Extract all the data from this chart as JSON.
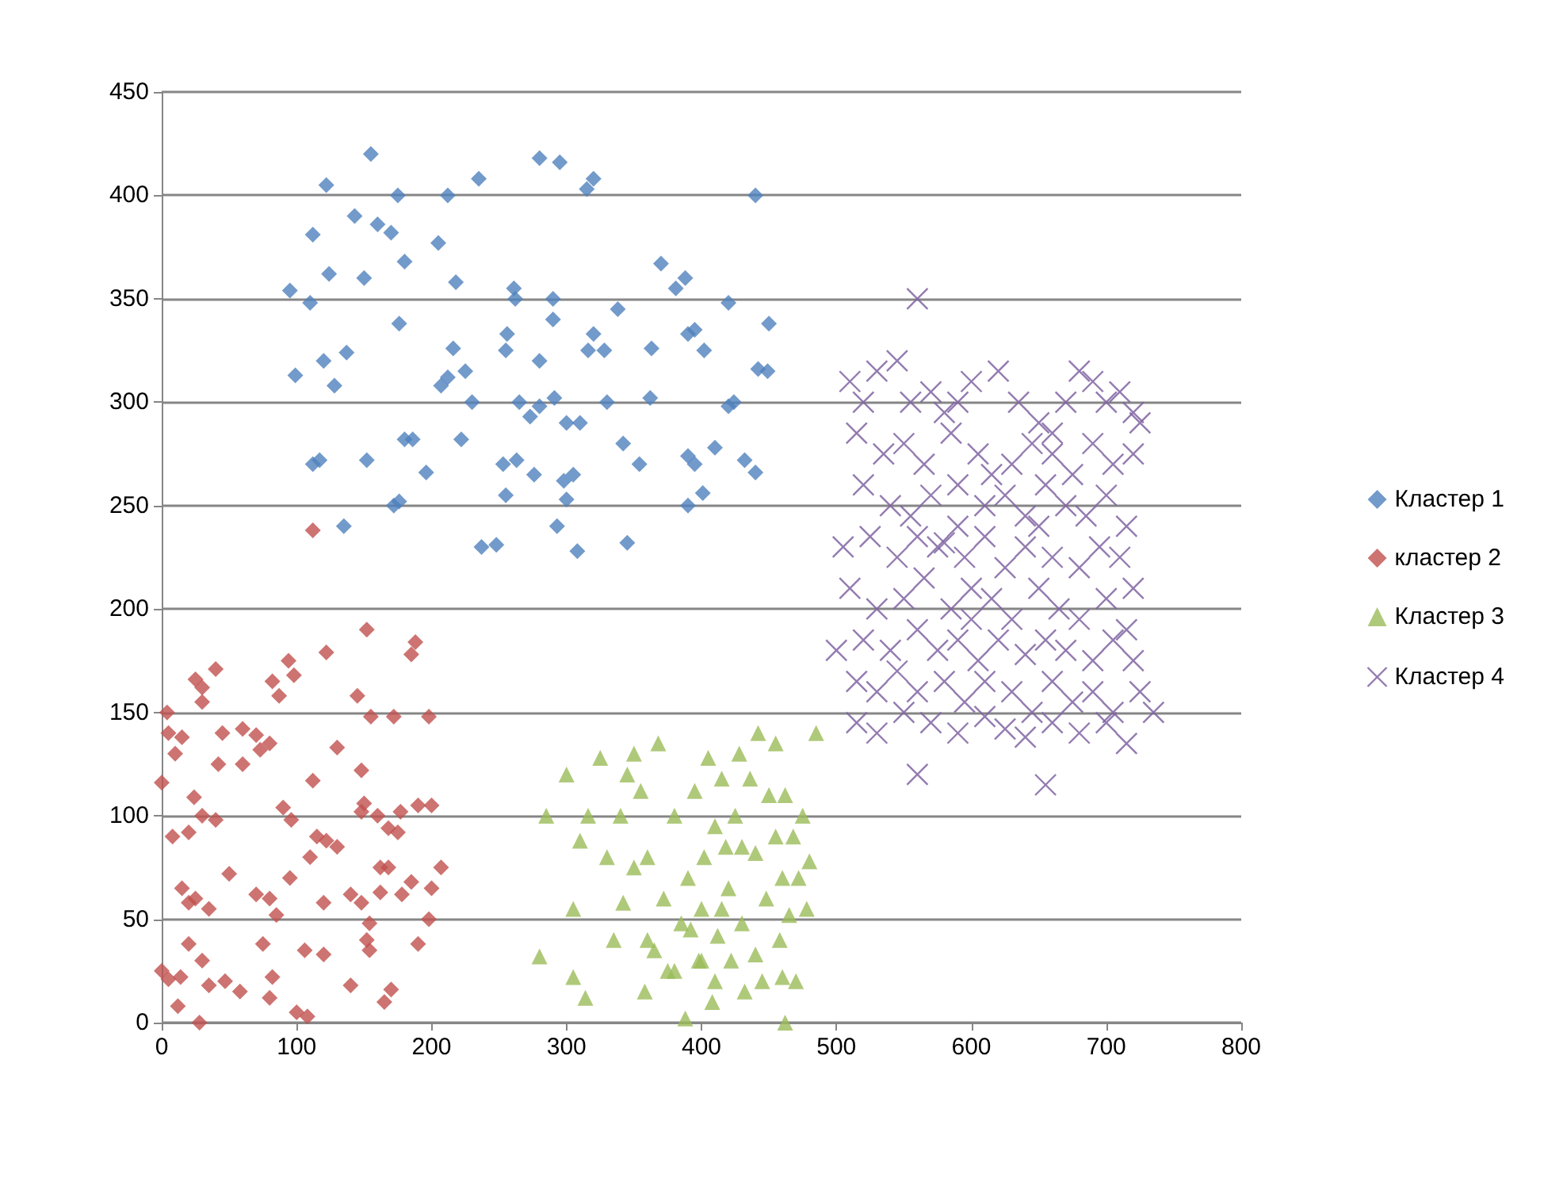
{
  "chart_data": {
    "type": "scatter",
    "xlim": [
      0,
      800
    ],
    "xticks": [
      0,
      100,
      200,
      300,
      400,
      500,
      600,
      700,
      800
    ],
    "ylim": [
      0,
      450
    ],
    "yticks": [
      0,
      50,
      100,
      150,
      200,
      250,
      300,
      350,
      400,
      450
    ],
    "grid": "y",
    "legend": "right",
    "series": [
      {
        "name": "Кластер 1",
        "color": "#4f81bd",
        "marker": "diamond",
        "x": [
          155,
          280,
          295,
          122,
          235,
          320,
          315,
          440,
          175,
          212,
          143,
          160,
          170,
          112,
          205,
          124,
          150,
          180,
          218,
          370,
          95,
          110,
          261,
          262,
          290,
          381,
          388,
          420,
          338,
          450,
          176,
          216,
          256,
          320,
          137,
          225,
          290,
          255,
          316,
          328,
          390,
          395,
          402,
          442,
          128,
          99,
          120,
          280,
          363,
          207,
          212,
          230,
          330,
          265,
          280,
          291,
          300,
          273,
          310,
          342,
          420,
          424,
          449,
          362,
          390,
          395,
          180,
          186,
          222,
          276,
          196,
          253,
          263,
          354,
          298,
          305,
          300,
          410,
          432,
          440,
          117,
          112,
          152,
          135,
          172,
          176,
          255,
          293,
          345,
          237,
          248,
          308,
          390,
          401
        ],
        "values": [
          420,
          418,
          416,
          405,
          408,
          408,
          403,
          400,
          400,
          400,
          390,
          386,
          382,
          381,
          377,
          362,
          360,
          368,
          358,
          367,
          354,
          348,
          355,
          350,
          350,
          355,
          360,
          348,
          345,
          338,
          338,
          326,
          333,
          333,
          324,
          315,
          340,
          325,
          325,
          325,
          333,
          335,
          325,
          316,
          308,
          313,
          320,
          320,
          326,
          308,
          312,
          300,
          300,
          300,
          298,
          302,
          290,
          293,
          290,
          280,
          298,
          300,
          315,
          302,
          274,
          270,
          282,
          282,
          282,
          265,
          266,
          270,
          272,
          270,
          262,
          265,
          253,
          278,
          272,
          266,
          272,
          270,
          272,
          240,
          250,
          252,
          255,
          240,
          232,
          230,
          231,
          228,
          250,
          256
        ]
      },
      {
        "name": "кластер 2",
        "color": "#c0504d",
        "marker": "diamond",
        "x": [
          112,
          152,
          188,
          185,
          122,
          40,
          25,
          30,
          82,
          94,
          98,
          87,
          145,
          155,
          30,
          172,
          198,
          4,
          5,
          15,
          10,
          60,
          45,
          70,
          80,
          73,
          148,
          130,
          60,
          42,
          112,
          0,
          24,
          150,
          90,
          96,
          148,
          160,
          168,
          175,
          177,
          200,
          190,
          115,
          122,
          130,
          110,
          8,
          20,
          30,
          40,
          15,
          20,
          25,
          35,
          50,
          70,
          80,
          85,
          120,
          140,
          148,
          95,
          154,
          152,
          162,
          162,
          168,
          178,
          185,
          198,
          190,
          200,
          207,
          20,
          14,
          30,
          35,
          47,
          58,
          75,
          82,
          106,
          120,
          140,
          154,
          165,
          170,
          28,
          80,
          100,
          108,
          0,
          5,
          12
        ],
        "values": [
          238,
          190,
          184,
          178,
          179,
          171,
          166,
          162,
          165,
          175,
          168,
          158,
          158,
          148,
          155,
          148,
          148,
          150,
          140,
          138,
          130,
          142,
          140,
          139,
          135,
          132,
          122,
          133,
          125,
          125,
          117,
          116,
          109,
          106,
          104,
          98,
          102,
          100,
          94,
          92,
          102,
          105,
          105,
          90,
          88,
          85,
          80,
          90,
          92,
          100,
          98,
          65,
          58,
          60,
          55,
          72,
          62,
          60,
          52,
          58,
          62,
          58,
          70,
          48,
          40,
          63,
          75,
          75,
          62,
          68,
          50,
          38,
          65,
          75,
          38,
          22,
          30,
          18,
          20,
          15,
          38,
          22,
          35,
          33,
          18,
          35,
          10,
          16,
          0,
          12,
          5,
          3,
          25,
          21,
          8
        ]
      },
      {
        "name": "Кластер 3",
        "color": "#9bbb59",
        "marker": "triangle",
        "x": [
          280,
          285,
          300,
          305,
          305,
          310,
          314,
          316,
          325,
          330,
          335,
          340,
          342,
          345,
          350,
          355,
          358,
          360,
          365,
          368,
          372,
          375,
          380,
          385,
          388,
          390,
          395,
          398,
          400,
          402,
          405,
          408,
          410,
          412,
          415,
          418,
          420,
          422,
          425,
          428,
          430,
          432,
          436,
          440,
          442,
          445,
          448,
          450,
          455,
          458,
          460,
          462,
          462,
          465,
          468,
          470,
          472,
          475,
          478,
          480,
          485,
          380,
          392,
          415,
          430,
          440,
          400,
          350,
          360,
          410,
          460,
          455
        ],
        "values": [
          32,
          100,
          120,
          55,
          22,
          88,
          12,
          100,
          128,
          80,
          40,
          100,
          58,
          120,
          130,
          112,
          15,
          80,
          35,
          135,
          60,
          25,
          100,
          48,
          2,
          70,
          112,
          30,
          55,
          80,
          128,
          10,
          95,
          42,
          118,
          85,
          65,
          30,
          100,
          130,
          48,
          15,
          118,
          82,
          140,
          20,
          60,
          110,
          135,
          40,
          70,
          110,
          0,
          52,
          90,
          20,
          70,
          100,
          55,
          78,
          140,
          25,
          45,
          55,
          85,
          33,
          30,
          75,
          40,
          20,
          22,
          90
        ]
      },
      {
        "name": "Кластер 4",
        "color": "#8064a2",
        "marker": "cross",
        "x": [
          560,
          510,
          520,
          530,
          545,
          555,
          570,
          580,
          590,
          600,
          620,
          635,
          650,
          660,
          670,
          680,
          690,
          700,
          710,
          720,
          515,
          535,
          550,
          565,
          585,
          605,
          615,
          630,
          645,
          660,
          675,
          690,
          705,
          720,
          725,
          520,
          540,
          555,
          570,
          590,
          610,
          625,
          640,
          655,
          670,
          685,
          700,
          715,
          505,
          525,
          545,
          560,
          575,
          580,
          595,
          610,
          625,
          640,
          660,
          680,
          695,
          710,
          720,
          510,
          530,
          550,
          565,
          585,
          600,
          615,
          630,
          650,
          665,
          680,
          700,
          715,
          520,
          540,
          560,
          575,
          590,
          605,
          620,
          640,
          655,
          670,
          690,
          705,
          720,
          500,
          515,
          530,
          545,
          560,
          580,
          595,
          610,
          630,
          645,
          660,
          675,
          690,
          705,
          725,
          735,
          515,
          530,
          550,
          570,
          590,
          610,
          625,
          640,
          660,
          680,
          700,
          715,
          560,
          655,
          600,
          650,
          590
        ],
        "values": [
          350,
          310,
          300,
          315,
          320,
          300,
          305,
          295,
          300,
          310,
          315,
          300,
          290,
          285,
          300,
          315,
          310,
          300,
          305,
          295,
          285,
          275,
          280,
          270,
          285,
          275,
          265,
          270,
          280,
          275,
          265,
          280,
          270,
          275,
          290,
          260,
          250,
          245,
          255,
          240,
          250,
          255,
          245,
          260,
          250,
          245,
          255,
          240,
          230,
          235,
          225,
          235,
          230,
          232,
          225,
          235,
          220,
          230,
          225,
          220,
          230,
          225,
          210,
          210,
          200,
          205,
          215,
          200,
          210,
          205,
          195,
          210,
          200,
          195,
          205,
          190,
          185,
          180,
          190,
          180,
          185,
          175,
          185,
          178,
          185,
          180,
          175,
          185,
          175,
          180,
          165,
          160,
          170,
          160,
          165,
          155,
          165,
          160,
          150,
          165,
          155,
          160,
          150,
          160,
          150,
          145,
          140,
          150,
          145,
          140,
          148,
          142,
          138,
          145,
          140,
          145,
          135,
          120,
          115,
          195,
          240,
          260
        ]
      }
    ]
  }
}
